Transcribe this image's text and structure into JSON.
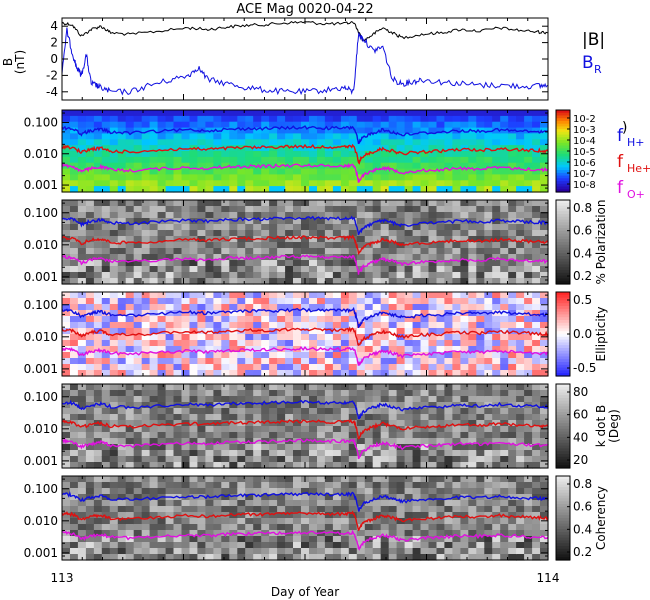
{
  "chart_data": {
    "type": "line",
    "title": "ACE Mag 0020-04-22",
    "xlabel": "Day of Year",
    "x_ticks": [
      "113",
      "114"
    ],
    "xlim": [
      113,
      114
    ],
    "panels": [
      {
        "kind": "line",
        "ylabel": "B",
        "yunit": "(nT)",
        "ylim": [
          -5,
          5
        ],
        "yticks": [
          "4",
          "2",
          "0",
          "-2",
          "-4"
        ],
        "legend": [
          {
            "label": "|B|",
            "color": "#000000"
          },
          {
            "label": "B",
            "sub": "R",
            "color": "#1010e0"
          }
        ],
        "series": [
          {
            "name": "|B|",
            "color": "#000000",
            "x": [
              113.0,
              113.02,
              113.04,
              113.06,
              113.08,
              113.1,
              113.14,
              113.2,
              113.26,
              113.3,
              113.34,
              113.38,
              113.42,
              113.46,
              113.5,
              113.54,
              113.58,
              113.6,
              113.62,
              113.64,
              113.66,
              113.68,
              113.7,
              113.74,
              113.78,
              113.82,
              113.86,
              113.9,
              113.94,
              113.98,
              114.0
            ],
            "y": [
              4.4,
              4.2,
              2.8,
              3.6,
              4.0,
              3.2,
              3.0,
              3.4,
              3.8,
              3.6,
              3.9,
              4.1,
              4.2,
              4.4,
              4.5,
              4.3,
              4.3,
              4.5,
              2.2,
              3.0,
              3.8,
              3.2,
              2.6,
              3.0,
              3.2,
              3.6,
              3.4,
              3.8,
              3.5,
              3.3,
              3.2
            ]
          },
          {
            "name": "B_R",
            "color": "#1010e0",
            "x": [
              113.0,
              113.01,
              113.02,
              113.03,
              113.04,
              113.05,
              113.06,
              113.07,
              113.08,
              113.1,
              113.14,
              113.18,
              113.22,
              113.26,
              113.28,
              113.3,
              113.34,
              113.38,
              113.42,
              113.46,
              113.5,
              113.54,
              113.58,
              113.6,
              113.61,
              113.62,
              113.64,
              113.66,
              113.68,
              113.7,
              113.72,
              113.74,
              113.78,
              113.82,
              113.86,
              113.9,
              113.94,
              113.98,
              114.0
            ],
            "y": [
              -1.5,
              3.5,
              1.0,
              -1.0,
              -2.0,
              0.5,
              -3.0,
              -3.2,
              -3.5,
              -4.0,
              -4.0,
              -3.2,
              -2.6,
              -2.0,
              -1.0,
              -2.5,
              -3.0,
              -3.5,
              -3.8,
              -4.0,
              -4.0,
              -3.8,
              -3.5,
              -4.0,
              3.0,
              2.5,
              1.0,
              1.5,
              -2.5,
              -3.0,
              -2.8,
              -2.5,
              -2.8,
              -3.0,
              -3.2,
              -3.2,
              -3.3,
              -3.3,
              -3.2
            ]
          }
        ]
      },
      {
        "kind": "spectrogram",
        "colormap": "rainbow",
        "colorbar": {
          "labels": [
            "10-2",
            "10-3",
            "10-4",
            "10-5",
            "10-6",
            "10-7",
            "10-8"
          ],
          "title": ""
        }
      },
      {
        "kind": "spectrogram",
        "colormap": "gray",
        "colorbar": {
          "labels": [
            "0.8",
            "0.6",
            "0.4",
            "0.2"
          ],
          "title": "% Polarization"
        }
      },
      {
        "kind": "spectrogram",
        "colormap": "redblue",
        "colorbar": {
          "labels": [
            "0.5",
            "0.0",
            "-0.5"
          ],
          "title": "Ellipticity"
        }
      },
      {
        "kind": "spectrogram",
        "colormap": "gray",
        "colorbar": {
          "labels": [
            "80",
            "60",
            "40",
            "20"
          ],
          "title": "k dot B",
          "subtitle": "(Deg)"
        }
      },
      {
        "kind": "spectrogram",
        "colormap": "gray",
        "colorbar": {
          "labels": [
            "0.8",
            "0.6",
            "0.4",
            "0.2"
          ],
          "title": "Coherency"
        }
      }
    ],
    "frequency_axis": {
      "scale": "log",
      "ylim": [
        0.0006,
        0.25
      ],
      "yticks": [
        "0.100",
        "0.010",
        "0.001"
      ]
    },
    "gyro_lines": [
      {
        "name": "f_H+",
        "label": "f",
        "sub": "H+",
        "color": "#1010e0",
        "x": [
          113.0,
          113.02,
          113.04,
          113.06,
          113.08,
          113.1,
          113.14,
          113.2,
          113.26,
          113.3,
          113.34,
          113.38,
          113.42,
          113.46,
          113.5,
          113.54,
          113.58,
          113.6,
          113.61,
          113.62,
          113.64,
          113.66,
          113.68,
          113.7,
          113.74,
          113.78,
          113.82,
          113.86,
          113.9,
          113.94,
          113.98,
          114.0
        ],
        "y": [
          0.068,
          0.064,
          0.043,
          0.055,
          0.061,
          0.049,
          0.046,
          0.052,
          0.058,
          0.055,
          0.06,
          0.063,
          0.064,
          0.067,
          0.069,
          0.066,
          0.066,
          0.069,
          0.02,
          0.034,
          0.046,
          0.058,
          0.049,
          0.04,
          0.046,
          0.049,
          0.055,
          0.052,
          0.058,
          0.053,
          0.05,
          0.049
        ]
      },
      {
        "name": "f_He+",
        "label": "f",
        "sub": "He+",
        "color": "#e01010",
        "x": [
          113.0,
          113.02,
          113.04,
          113.06,
          113.08,
          113.1,
          113.14,
          113.2,
          113.26,
          113.3,
          113.34,
          113.38,
          113.42,
          113.46,
          113.5,
          113.54,
          113.58,
          113.6,
          113.61,
          113.62,
          113.64,
          113.66,
          113.68,
          113.7,
          113.74,
          113.78,
          113.82,
          113.86,
          113.9,
          113.94,
          113.98,
          114.0
        ],
        "y": [
          0.017,
          0.016,
          0.011,
          0.014,
          0.015,
          0.012,
          0.0115,
          0.013,
          0.0145,
          0.0138,
          0.015,
          0.0158,
          0.016,
          0.0168,
          0.0172,
          0.0165,
          0.0165,
          0.0172,
          0.005,
          0.0085,
          0.0115,
          0.0145,
          0.0122,
          0.01,
          0.0115,
          0.0122,
          0.0138,
          0.013,
          0.0145,
          0.0133,
          0.0125,
          0.0122
        ]
      },
      {
        "name": "f_O+",
        "label": "f",
        "sub": "O+",
        "color": "#e010e0",
        "x": [
          113.0,
          113.02,
          113.04,
          113.06,
          113.08,
          113.1,
          113.14,
          113.2,
          113.26,
          113.3,
          113.34,
          113.38,
          113.42,
          113.46,
          113.5,
          113.54,
          113.58,
          113.6,
          113.61,
          113.62,
          113.64,
          113.66,
          113.68,
          113.7,
          113.74,
          113.78,
          113.82,
          113.86,
          113.9,
          113.94,
          113.98,
          114.0
        ],
        "y": [
          0.0043,
          0.004,
          0.0027,
          0.0034,
          0.0038,
          0.0031,
          0.0029,
          0.0033,
          0.0036,
          0.0034,
          0.0038,
          0.0039,
          0.004,
          0.0042,
          0.0043,
          0.0041,
          0.0041,
          0.0043,
          0.00125,
          0.0021,
          0.0029,
          0.0036,
          0.0031,
          0.0025,
          0.0029,
          0.0031,
          0.0034,
          0.0033,
          0.0036,
          0.0033,
          0.0031,
          0.0031
        ]
      }
    ]
  }
}
